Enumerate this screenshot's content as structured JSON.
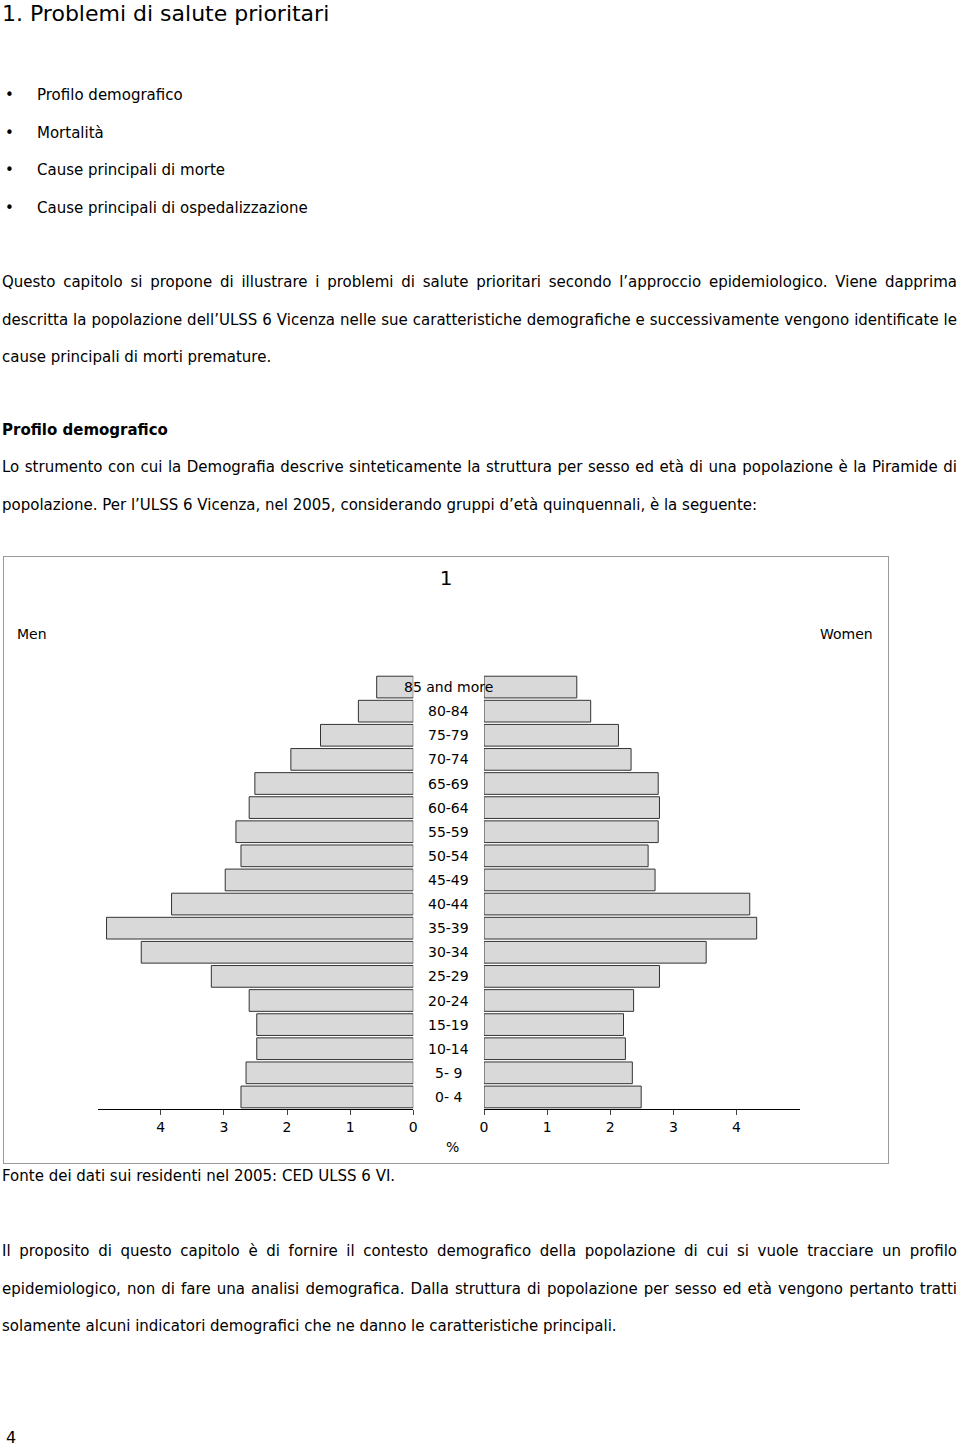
{
  "heading": "1. Problemi di salute prioritari",
  "bullets": [
    "Profilo demografico",
    "Mortalità",
    "Cause principali di morte",
    "Cause principali di ospedalizzazione"
  ],
  "intro": "Questo capitolo si propone di illustrare i problemi di salute prioritari secondo l’approccio epidemiologico. Viene dapprima descritta la popolazione dell’ULSS 6 Vicenza nelle sue caratteristiche demografiche e successivamente vengono identificate le cause principali di morti premature.",
  "section": {
    "title": "Profilo demografico",
    "text": "Lo strumento con cui la Demografia descrive sinteticamente la struttura per sesso ed età di una popolazione è la Piramide di popolazione. Per l’ULSS 6 Vicenza, nel 2005, considerando gruppi d’età quinquennali, è la seguente:"
  },
  "chart_data": {
    "type": "bar",
    "orientation": "horizontal",
    "title": "1",
    "xlabel": "%",
    "categories": [
      "0- 4",
      "5- 9",
      "10-14",
      "15-19",
      "20-24",
      "25-29",
      "30-34",
      "35-39",
      "40-44",
      "45-49",
      "50-54",
      "55-59",
      "60-64",
      "65-69",
      "70-74",
      "75-79",
      "80-84",
      "85 and more"
    ],
    "series": [
      {
        "name": "Men",
        "color": "#d9d9d9",
        "values": [
          2.73,
          2.65,
          2.48,
          2.48,
          2.6,
          3.2,
          4.31,
          4.86,
          3.83,
          2.98,
          2.73,
          2.81,
          2.6,
          2.51,
          1.94,
          1.47,
          0.87,
          0.58
        ]
      },
      {
        "name": "Women",
        "color": "#d9d9d9",
        "values": [
          2.49,
          2.35,
          2.24,
          2.21,
          2.37,
          2.78,
          3.52,
          4.32,
          4.21,
          2.71,
          2.6,
          2.76,
          2.78,
          2.76,
          2.33,
          2.13,
          1.69,
          1.47
        ]
      }
    ],
    "xlim": [
      0,
      5
    ],
    "xticks": [
      0,
      1,
      2,
      3,
      4
    ],
    "grid": false
  },
  "caption": "Fonte dei dati sui residenti nel 2005: CED ULSS 6 VI.",
  "closing": "Il proposito di questo capitolo è di fornire il contesto demografico della popolazione di cui si vuole tracciare un profilo epidemiologico, non di fare una analisi demografica. Dalla struttura di popolazione per sesso ed età vengono pertanto tratti solamente alcuni indicatori demografici che ne danno le caratteristiche principali.",
  "page_number": 4
}
